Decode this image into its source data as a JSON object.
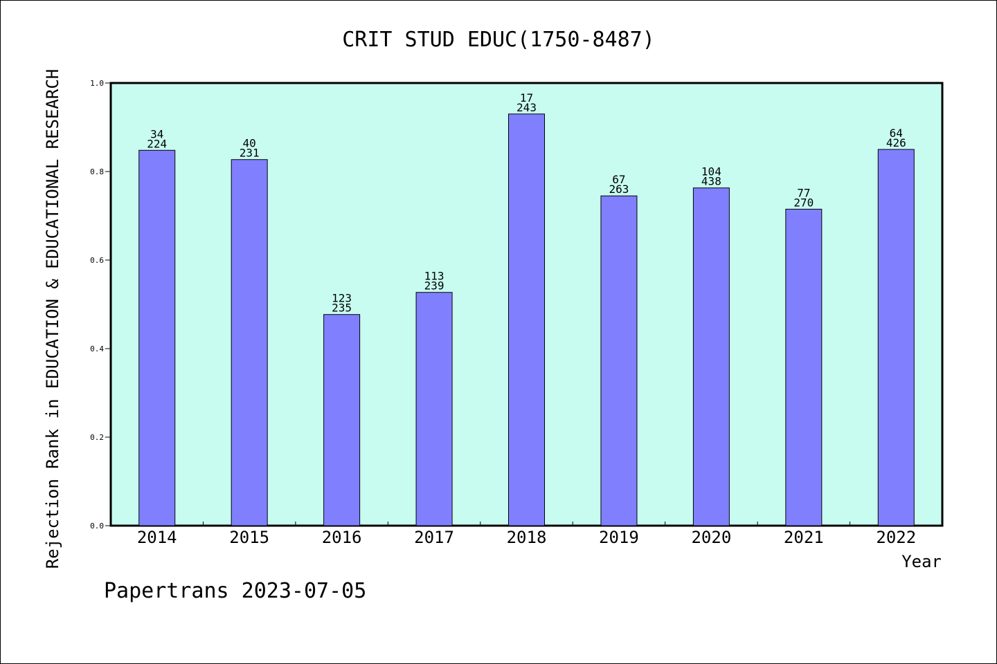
{
  "chart_data": {
    "type": "bar",
    "title": "CRIT STUD EDUC(1750-8487)",
    "xlabel": "Year",
    "ylabel": "Rejection Rank in EDUCATION & EDUCATIONAL RESEARCH",
    "ylim": [
      0,
      1.0
    ],
    "yticks": [
      "0.0",
      "0.2",
      "0.4",
      "0.6",
      "0.8",
      "1.0"
    ],
    "grid": false,
    "categories": [
      "2014",
      "2015",
      "2016",
      "2017",
      "2018",
      "2019",
      "2020",
      "2021",
      "2022"
    ],
    "values": [
      0.848,
      0.827,
      0.477,
      0.527,
      0.93,
      0.745,
      0.763,
      0.715,
      0.85
    ],
    "label_top": [
      "34",
      "40",
      "123",
      "113",
      "17",
      "67",
      "104",
      "77",
      "64"
    ],
    "label_bottom": [
      "224",
      "231",
      "235",
      "239",
      "243",
      "263",
      "438",
      "270",
      "426"
    ],
    "footer": "Papertrans 2023-07-05",
    "colors": {
      "bar": "#8080ff",
      "plot_background": "#c8fcf0",
      "axes": "#000000"
    }
  }
}
